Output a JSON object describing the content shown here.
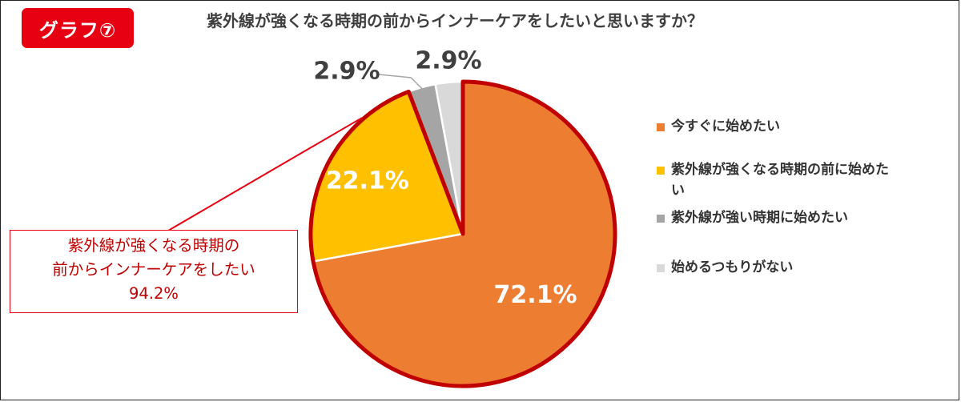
{
  "badge": "グラフ⑦",
  "chart_data": {
    "type": "pie",
    "title": "紫外線が強くなる時期の前からインナーケアをしたいと思いますか？",
    "slices": [
      {
        "label": "今すぐに始めたい",
        "value": 72.1,
        "display": "72.1%",
        "color": "#ed7d31"
      },
      {
        "label": "紫外線が強くなる時期の前に始めたい",
        "value": 22.1,
        "display": "22.1%",
        "color": "#ffc000"
      },
      {
        "label": "紫外線が強い時期に始めたい",
        "value": 2.9,
        "display": "2.9%",
        "color": "#a5a5a5"
      },
      {
        "label": "始めるつもりがない",
        "value": 2.9,
        "display": "2.9%",
        "color": "#d9d9d9"
      }
    ],
    "highlight_color": "#c00000",
    "legend_position": "right"
  },
  "legend": [
    {
      "lines": [
        "紫外線が強くなる時期の前に始めた",
        "い"
      ]
    }
  ],
  "callout": {
    "line1": "紫外線が強くなる時期の",
    "line2": "前からインナーケアをしたい",
    "line3": "94.2%"
  }
}
